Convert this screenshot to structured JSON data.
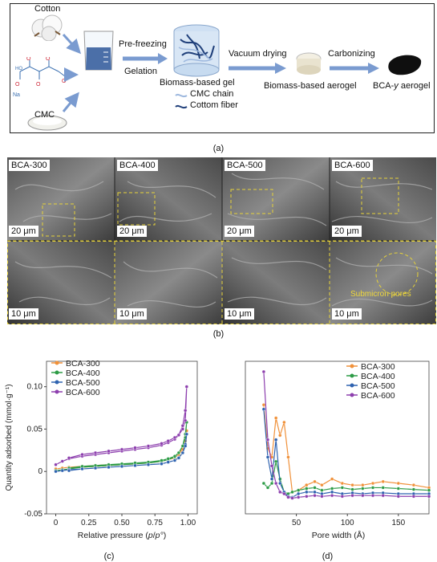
{
  "panel_a": {
    "labels": {
      "cotton": "Cotton",
      "cmc": "CMC",
      "pre_freezing": "Pre-freezing",
      "gelation": "Gelation",
      "gel": "Biomass-based gel",
      "vacuum_drying": "Vacuum drying",
      "aerogel": "Biomass-based aerogel",
      "carbonizing": "Carbonizing",
      "bca_prefix": "BCA-",
      "bca_y": "y",
      "bca_suffix": " aerogel",
      "legend_cmc": "CMC chain",
      "legend_fiber": "Cottom fiber",
      "na": "Na"
    },
    "caption": "(a)"
  },
  "panel_b": {
    "top_labels": [
      "BCA-300",
      "BCA-400",
      "BCA-500",
      "BCA-600"
    ],
    "top_scale": "20 μm",
    "bottom_scale": "10 μm",
    "annotation": "Submicron pores",
    "caption": "(b)"
  },
  "chart_c": {
    "caption": "(c)",
    "chart_data": {
      "type": "line",
      "xlabel_prefix": "Relative pressure (",
      "xlabel_italic": "p",
      "xlabel_mid": "/",
      "xlabel_italic2": "p°",
      "xlabel_suffix": ")",
      "ylabel": "Quantity adsorbed (mmol·g⁻¹)",
      "xlim": [
        -0.07,
        1.07
      ],
      "ylim": [
        -0.05,
        0.13
      ],
      "xticks": [
        "0",
        "0.25",
        "0.50",
        "0.75",
        "1.00"
      ],
      "xtick_values": [
        0,
        0.25,
        0.5,
        0.75,
        1.0
      ],
      "yticks": [
        "-0.05",
        "0",
        "0.05",
        "0.10"
      ],
      "ytick_values": [
        -0.05,
        0,
        0.05,
        0.1
      ],
      "legend_position": "top-left",
      "series": [
        {
          "name": "BCA-300",
          "color": "#f0913a",
          "x": [
            0.0,
            0.05,
            0.1,
            0.2,
            0.3,
            0.4,
            0.5,
            0.6,
            0.7,
            0.8,
            0.85,
            0.9,
            0.93,
            0.96,
            0.98,
            0.99,
            0.98,
            0.96,
            0.93,
            0.9,
            0.85,
            0.8,
            0.7,
            0.6,
            0.5,
            0.4,
            0.3,
            0.2,
            0.1
          ],
          "y": [
            0.003,
            0.004,
            0.005,
            0.006,
            0.007,
            0.008,
            0.008,
            0.009,
            0.01,
            0.012,
            0.014,
            0.016,
            0.02,
            0.028,
            0.04,
            0.048,
            0.036,
            0.026,
            0.02,
            0.016,
            0.014,
            0.012,
            0.01,
            0.009,
            0.008,
            0.007,
            0.006,
            0.005,
            0.004
          ]
        },
        {
          "name": "BCA-400",
          "color": "#2e9c47",
          "x": [
            0.0,
            0.05,
            0.1,
            0.2,
            0.3,
            0.4,
            0.5,
            0.6,
            0.7,
            0.8,
            0.85,
            0.9,
            0.93,
            0.96,
            0.98,
            0.99,
            0.98,
            0.96,
            0.93,
            0.9,
            0.85,
            0.8,
            0.7,
            0.6,
            0.5,
            0.4,
            0.3,
            0.2,
            0.1
          ],
          "y": [
            0.001,
            0.002,
            0.003,
            0.005,
            0.006,
            0.007,
            0.008,
            0.009,
            0.01,
            0.012,
            0.014,
            0.017,
            0.022,
            0.03,
            0.044,
            0.058,
            0.04,
            0.03,
            0.022,
            0.018,
            0.015,
            0.013,
            0.011,
            0.01,
            0.009,
            0.008,
            0.007,
            0.006,
            0.004
          ]
        },
        {
          "name": "BCA-500",
          "color": "#2f63b0",
          "x": [
            0.0,
            0.05,
            0.1,
            0.2,
            0.3,
            0.4,
            0.5,
            0.6,
            0.7,
            0.8,
            0.85,
            0.9,
            0.93,
            0.96,
            0.98,
            0.99,
            0.98,
            0.96,
            0.93,
            0.9,
            0.85,
            0.8,
            0.7,
            0.6,
            0.5,
            0.4,
            0.3,
            0.2,
            0.1
          ],
          "y": [
            0.0,
            0.001,
            0.002,
            0.003,
            0.004,
            0.005,
            0.006,
            0.007,
            0.008,
            0.009,
            0.011,
            0.013,
            0.016,
            0.022,
            0.032,
            0.044,
            0.03,
            0.022,
            0.016,
            0.013,
            0.011,
            0.009,
            0.008,
            0.007,
            0.006,
            0.005,
            0.004,
            0.003,
            0.001
          ]
        },
        {
          "name": "BCA-600",
          "color": "#8d3fae",
          "x": [
            0.0,
            0.05,
            0.1,
            0.2,
            0.3,
            0.4,
            0.5,
            0.6,
            0.7,
            0.8,
            0.85,
            0.9,
            0.93,
            0.96,
            0.98,
            0.99,
            0.98,
            0.96,
            0.93,
            0.9,
            0.85,
            0.8,
            0.7,
            0.6,
            0.5,
            0.4,
            0.3,
            0.2,
            0.1
          ],
          "y": [
            0.008,
            0.012,
            0.015,
            0.018,
            0.02,
            0.022,
            0.024,
            0.026,
            0.028,
            0.031,
            0.034,
            0.038,
            0.043,
            0.054,
            0.072,
            0.1,
            0.06,
            0.05,
            0.043,
            0.04,
            0.036,
            0.033,
            0.03,
            0.028,
            0.026,
            0.024,
            0.022,
            0.02,
            0.016
          ]
        }
      ]
    }
  },
  "chart_d": {
    "caption": "(d)",
    "chart_data": {
      "type": "line",
      "xlabel": "Pore width (Å)",
      "xlim": [
        0,
        180
      ],
      "ylim": [
        -0.045,
        0.13
      ],
      "xticks": [
        "50",
        "100",
        "150"
      ],
      "xtick_values": [
        50,
        100,
        150
      ],
      "legend_position": "top-right",
      "series": [
        {
          "name": "BCA-300",
          "color": "#f0913a",
          "x": [
            18,
            22,
            26,
            30,
            34,
            38,
            42,
            46,
            52,
            60,
            68,
            75,
            85,
            95,
            105,
            115,
            125,
            135,
            150,
            165,
            180
          ],
          "y": [
            0.08,
            0.03,
            0.02,
            0.065,
            0.045,
            0.06,
            0.02,
            -0.02,
            -0.018,
            -0.012,
            -0.008,
            -0.012,
            -0.005,
            -0.01,
            -0.012,
            -0.012,
            -0.01,
            -0.008,
            -0.01,
            -0.012,
            -0.015
          ]
        },
        {
          "name": "BCA-400",
          "color": "#2e9c47",
          "x": [
            18,
            22,
            26,
            30,
            34,
            38,
            42,
            46,
            52,
            60,
            68,
            75,
            85,
            95,
            105,
            115,
            125,
            135,
            150,
            165,
            180
          ],
          "y": [
            -0.01,
            -0.015,
            -0.01,
            0.015,
            -0.005,
            -0.02,
            -0.022,
            -0.02,
            -0.018,
            -0.016,
            -0.015,
            -0.018,
            -0.016,
            -0.015,
            -0.017,
            -0.016,
            -0.015,
            -0.015,
            -0.016,
            -0.017,
            -0.018
          ]
        },
        {
          "name": "BCA-500",
          "color": "#2f63b0",
          "x": [
            18,
            22,
            26,
            30,
            34,
            38,
            42,
            46,
            52,
            60,
            68,
            75,
            85,
            95,
            105,
            115,
            125,
            135,
            150,
            165,
            180
          ],
          "y": [
            0.075,
            0.02,
            -0.005,
            0.04,
            -0.01,
            -0.02,
            -0.025,
            -0.026,
            -0.022,
            -0.02,
            -0.02,
            -0.022,
            -0.02,
            -0.022,
            -0.021,
            -0.022,
            -0.021,
            -0.021,
            -0.022,
            -0.022,
            -0.022
          ]
        },
        {
          "name": "BCA-600",
          "color": "#8d3fae",
          "x": [
            18,
            22,
            26,
            30,
            34,
            38,
            42,
            46,
            52,
            60,
            68,
            75,
            85,
            95,
            105,
            115,
            125,
            135,
            150,
            165,
            180
          ],
          "y": [
            0.118,
            0.04,
            0.01,
            -0.01,
            -0.02,
            -0.022,
            -0.026,
            -0.027,
            -0.026,
            -0.025,
            -0.024,
            -0.025,
            -0.024,
            -0.025,
            -0.024,
            -0.024,
            -0.024,
            -0.024,
            -0.025,
            -0.025,
            -0.025
          ]
        }
      ]
    }
  }
}
